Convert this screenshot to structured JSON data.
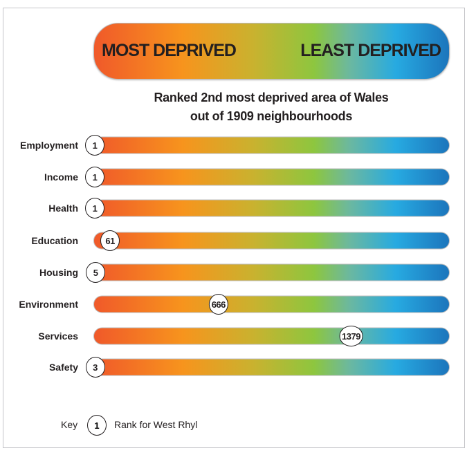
{
  "chart_data": {
    "type": "bar",
    "title": "Ranked 2nd most deprived area of Wales",
    "subtitle": "out of 1909 neighbourhoods",
    "scale_left_label": "MOST DEPRIVED",
    "scale_right_label": "LEAST DEPRIVED",
    "xlim": [
      1,
      1909
    ],
    "categories": [
      "Employment",
      "Income",
      "Health",
      "Education",
      "Housing",
      "Environment",
      "Services",
      "Safety"
    ],
    "values": [
      1,
      1,
      1,
      61,
      5,
      666,
      1379,
      3
    ],
    "colors": [
      "#f0592a",
      "#f7941d",
      "#c9b22f",
      "#8dc63f",
      "#27aae1",
      "#1c75bc"
    ],
    "legend": {
      "label": "Key",
      "marker": "1",
      "text": "Rank for West Rhyl"
    }
  }
}
